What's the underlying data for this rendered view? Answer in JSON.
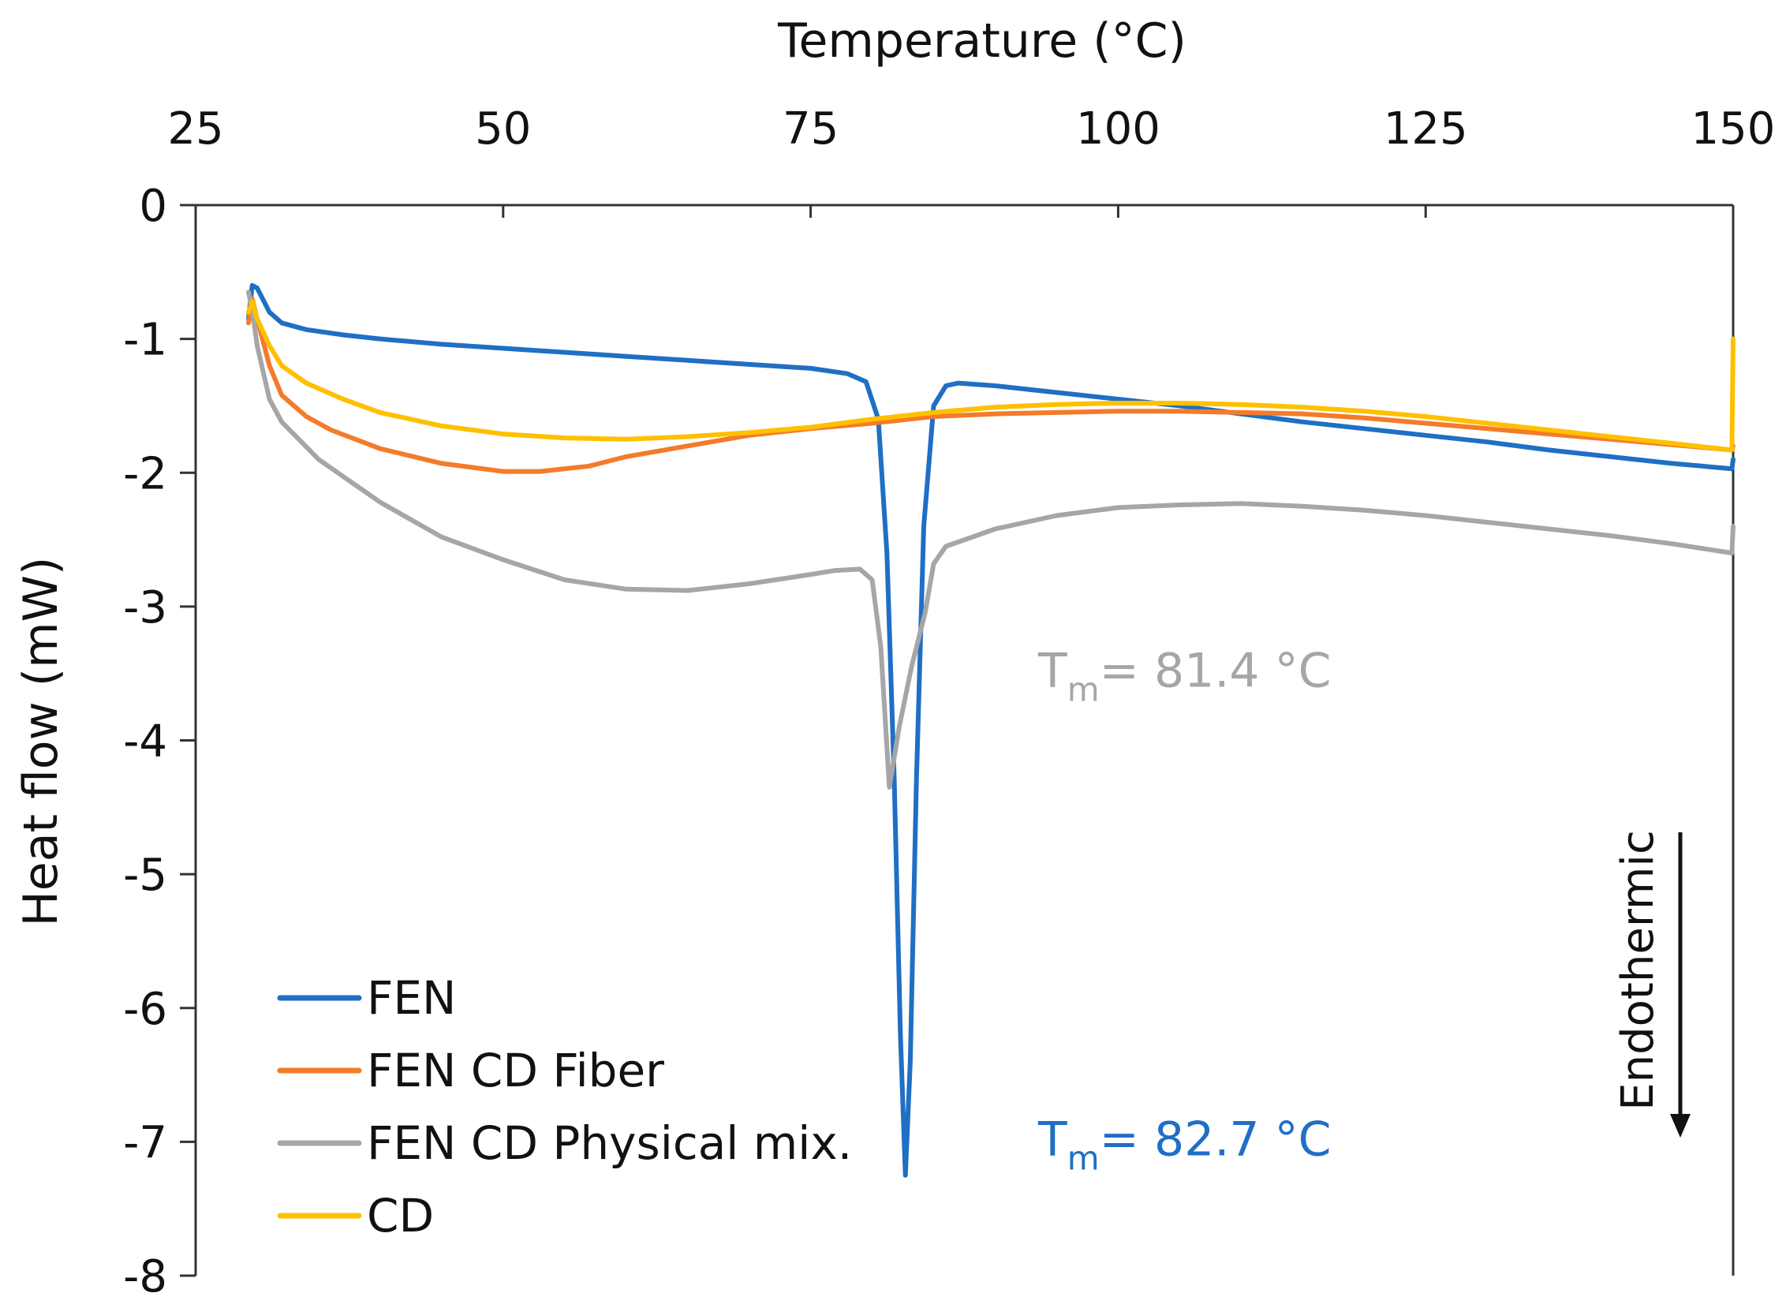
{
  "chart_data": {
    "type": "line",
    "title": "",
    "xlabel": "Temperature (°C)",
    "ylabel": "Heat flow (mW)",
    "xlim": [
      25,
      150
    ],
    "ylim": [
      -8,
      0
    ],
    "x_ticks": [
      25,
      50,
      75,
      100,
      125,
      150
    ],
    "y_ticks": [
      0,
      -1,
      -2,
      -3,
      -4,
      -5,
      -6,
      -7,
      -8
    ],
    "x_axis_position": "top",
    "grid": false,
    "legend_position": "bottom-left",
    "series": [
      {
        "name": "FEN",
        "color": "#1f6fc5",
        "points": [
          [
            29.3,
            -0.85
          ],
          [
            29.6,
            -0.6
          ],
          [
            30,
            -0.62
          ],
          [
            31,
            -0.8
          ],
          [
            32,
            -0.88
          ],
          [
            34,
            -0.93
          ],
          [
            37,
            -0.97
          ],
          [
            40,
            -1.0
          ],
          [
            45,
            -1.04
          ],
          [
            50,
            -1.07
          ],
          [
            55,
            -1.1
          ],
          [
            60,
            -1.13
          ],
          [
            65,
            -1.16
          ],
          [
            70,
            -1.19
          ],
          [
            75,
            -1.22
          ],
          [
            78,
            -1.26
          ],
          [
            79.5,
            -1.32
          ],
          [
            80.5,
            -1.6
          ],
          [
            81.2,
            -2.6
          ],
          [
            81.8,
            -4.3
          ],
          [
            82.3,
            -6.2
          ],
          [
            82.7,
            -7.25
          ],
          [
            83.1,
            -6.4
          ],
          [
            83.6,
            -4.3
          ],
          [
            84.2,
            -2.4
          ],
          [
            85,
            -1.5
          ],
          [
            86,
            -1.35
          ],
          [
            87,
            -1.33
          ],
          [
            90,
            -1.35
          ],
          [
            95,
            -1.4
          ],
          [
            100,
            -1.45
          ],
          [
            105,
            -1.5
          ],
          [
            110,
            -1.56
          ],
          [
            115,
            -1.62
          ],
          [
            120,
            -1.67
          ],
          [
            125,
            -1.72
          ],
          [
            130,
            -1.77
          ],
          [
            135,
            -1.83
          ],
          [
            140,
            -1.88
          ],
          [
            145,
            -1.93
          ],
          [
            149.9,
            -1.97
          ],
          [
            150,
            -1.9
          ]
        ]
      },
      {
        "name": "FEN CD Fiber",
        "color": "#f47b2a",
        "points": [
          [
            29.3,
            -0.88
          ],
          [
            29.6,
            -0.7
          ],
          [
            30,
            -0.85
          ],
          [
            31,
            -1.2
          ],
          [
            32,
            -1.42
          ],
          [
            34,
            -1.58
          ],
          [
            36,
            -1.68
          ],
          [
            40,
            -1.82
          ],
          [
            45,
            -1.93
          ],
          [
            50,
            -1.99
          ],
          [
            53,
            -1.99
          ],
          [
            57,
            -1.95
          ],
          [
            60,
            -1.88
          ],
          [
            65,
            -1.8
          ],
          [
            70,
            -1.72
          ],
          [
            75,
            -1.67
          ],
          [
            80,
            -1.63
          ],
          [
            85,
            -1.58
          ],
          [
            90,
            -1.56
          ],
          [
            95,
            -1.55
          ],
          [
            100,
            -1.54
          ],
          [
            105,
            -1.54
          ],
          [
            110,
            -1.55
          ],
          [
            115,
            -1.56
          ],
          [
            120,
            -1.59
          ],
          [
            125,
            -1.63
          ],
          [
            130,
            -1.67
          ],
          [
            135,
            -1.71
          ],
          [
            140,
            -1.75
          ],
          [
            145,
            -1.79
          ],
          [
            149.9,
            -1.83
          ],
          [
            150,
            -1.8
          ]
        ]
      },
      {
        "name": "FEN CD Physical mix.",
        "color": "#a6a6a6",
        "points": [
          [
            29.3,
            -0.65
          ],
          [
            29.6,
            -0.78
          ],
          [
            30,
            -1.05
          ],
          [
            31,
            -1.45
          ],
          [
            32,
            -1.62
          ],
          [
            35,
            -1.9
          ],
          [
            40,
            -2.22
          ],
          [
            45,
            -2.48
          ],
          [
            50,
            -2.65
          ],
          [
            55,
            -2.8
          ],
          [
            60,
            -2.87
          ],
          [
            65,
            -2.88
          ],
          [
            70,
            -2.83
          ],
          [
            75,
            -2.76
          ],
          [
            77,
            -2.73
          ],
          [
            79,
            -2.72
          ],
          [
            80,
            -2.8
          ],
          [
            80.7,
            -3.3
          ],
          [
            81.4,
            -4.35
          ],
          [
            82.2,
            -3.9
          ],
          [
            83.2,
            -3.45
          ],
          [
            84.3,
            -3.05
          ],
          [
            85,
            -2.68
          ],
          [
            86,
            -2.55
          ],
          [
            90,
            -2.42
          ],
          [
            95,
            -2.32
          ],
          [
            100,
            -2.26
          ],
          [
            105,
            -2.24
          ],
          [
            110,
            -2.23
          ],
          [
            115,
            -2.25
          ],
          [
            120,
            -2.28
          ],
          [
            125,
            -2.32
          ],
          [
            130,
            -2.37
          ],
          [
            135,
            -2.42
          ],
          [
            140,
            -2.47
          ],
          [
            145,
            -2.53
          ],
          [
            149.9,
            -2.6
          ],
          [
            150,
            -2.4
          ]
        ]
      },
      {
        "name": "CD",
        "color": "#ffc000",
        "points": [
          [
            29.3,
            -0.8
          ],
          [
            29.6,
            -0.72
          ],
          [
            30,
            -0.85
          ],
          [
            31,
            -1.05
          ],
          [
            32,
            -1.2
          ],
          [
            34,
            -1.33
          ],
          [
            37,
            -1.45
          ],
          [
            40,
            -1.55
          ],
          [
            45,
            -1.65
          ],
          [
            50,
            -1.71
          ],
          [
            55,
            -1.74
          ],
          [
            60,
            -1.75
          ],
          [
            65,
            -1.73
          ],
          [
            70,
            -1.7
          ],
          [
            75,
            -1.66
          ],
          [
            80,
            -1.6
          ],
          [
            85,
            -1.55
          ],
          [
            90,
            -1.51
          ],
          [
            95,
            -1.49
          ],
          [
            100,
            -1.48
          ],
          [
            105,
            -1.48
          ],
          [
            110,
            -1.49
          ],
          [
            115,
            -1.51
          ],
          [
            120,
            -1.54
          ],
          [
            125,
            -1.58
          ],
          [
            130,
            -1.63
          ],
          [
            135,
            -1.68
          ],
          [
            140,
            -1.73
          ],
          [
            145,
            -1.78
          ],
          [
            149.9,
            -1.83
          ],
          [
            150,
            -1.0
          ]
        ]
      }
    ],
    "annotations": [
      {
        "text": "T",
        "sub": "m",
        "rest": "= 81.4 °C",
        "color": "#a6a6a6",
        "x": 93.5,
        "y": -3.6
      },
      {
        "text": "T",
        "sub": "m",
        "rest": "= 82.7 °C",
        "color": "#1f6fc5",
        "x": 93.5,
        "y": -7.1
      }
    ],
    "direction_label": "Endothermic"
  }
}
